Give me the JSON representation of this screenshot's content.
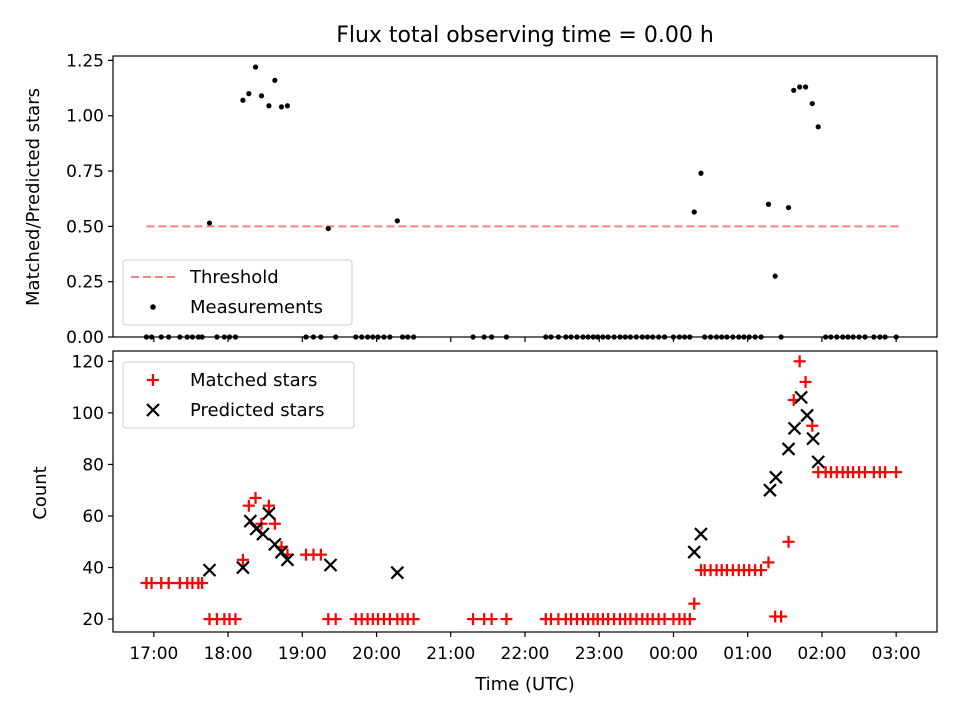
{
  "chart_data": [
    {
      "type": "scatter",
      "title": "Flux total observing time = 0.00 h",
      "xlabel": "",
      "ylabel": "Matched/Predicted stars",
      "xlim": [
        16.45,
        27.55
      ],
      "ylim": [
        0,
        1.27
      ],
      "yticks": [
        0,
        0.25,
        0.5,
        0.75,
        1.0,
        1.25
      ],
      "ytick_labels": [
        "0.00",
        "0.25",
        "0.50",
        "0.75",
        "1.00",
        "1.25"
      ],
      "threshold": {
        "name": "Threshold",
        "value": 0.5,
        "x_start": 16.9,
        "x_end": 27.05,
        "color": "#ff7f7f"
      },
      "legend": {
        "placement": "lower-left",
        "entries": [
          "Threshold",
          "Measurements"
        ]
      },
      "series": [
        {
          "name": "Measurements",
          "color": "#000000",
          "points": [
            [
              16.9,
              0
            ],
            [
              16.97,
              0
            ],
            [
              17.1,
              0
            ],
            [
              17.2,
              0
            ],
            [
              17.35,
              0
            ],
            [
              17.45,
              0
            ],
            [
              17.52,
              0
            ],
            [
              17.6,
              0
            ],
            [
              17.65,
              0
            ],
            [
              17.75,
              0.515
            ],
            [
              17.85,
              0
            ],
            [
              17.95,
              0
            ],
            [
              18.02,
              0
            ],
            [
              18.1,
              0
            ],
            [
              18.2,
              1.07
            ],
            [
              18.28,
              1.1
            ],
            [
              18.37,
              1.22
            ],
            [
              18.45,
              1.09
            ],
            [
              18.55,
              1.045
            ],
            [
              18.63,
              1.16
            ],
            [
              18.72,
              1.04
            ],
            [
              18.8,
              1.045
            ],
            [
              19.05,
              0
            ],
            [
              19.15,
              0
            ],
            [
              19.25,
              0
            ],
            [
              19.35,
              0.49
            ],
            [
              19.45,
              0
            ],
            [
              19.72,
              0
            ],
            [
              19.8,
              0
            ],
            [
              19.88,
              0
            ],
            [
              19.95,
              0
            ],
            [
              20.02,
              0
            ],
            [
              20.1,
              0
            ],
            [
              20.18,
              0
            ],
            [
              20.28,
              0.525
            ],
            [
              20.35,
              0
            ],
            [
              20.42,
              0
            ],
            [
              20.5,
              0
            ],
            [
              21.3,
              0
            ],
            [
              21.45,
              0
            ],
            [
              21.55,
              0
            ],
            [
              21.75,
              0
            ],
            [
              22.28,
              0
            ],
            [
              22.35,
              0
            ],
            [
              22.45,
              0
            ],
            [
              22.55,
              0
            ],
            [
              22.62,
              0
            ],
            [
              22.7,
              0
            ],
            [
              22.78,
              0
            ],
            [
              22.85,
              0
            ],
            [
              22.92,
              0
            ],
            [
              22.98,
              0
            ],
            [
              23.05,
              0
            ],
            [
              23.12,
              0
            ],
            [
              23.2,
              0
            ],
            [
              23.28,
              0
            ],
            [
              23.35,
              0
            ],
            [
              23.42,
              0
            ],
            [
              23.5,
              0
            ],
            [
              23.58,
              0
            ],
            [
              23.65,
              0
            ],
            [
              23.72,
              0
            ],
            [
              23.8,
              0
            ],
            [
              23.88,
              0
            ],
            [
              24.0,
              0
            ],
            [
              24.08,
              0
            ],
            [
              24.15,
              0
            ],
            [
              24.22,
              0
            ],
            [
              24.28,
              0.565
            ],
            [
              24.37,
              0.74
            ],
            [
              24.42,
              0
            ],
            [
              24.5,
              0
            ],
            [
              24.58,
              0
            ],
            [
              24.65,
              0
            ],
            [
              24.72,
              0
            ],
            [
              24.8,
              0
            ],
            [
              24.88,
              0
            ],
            [
              24.95,
              0
            ],
            [
              25.02,
              0
            ],
            [
              25.1,
              0
            ],
            [
              25.18,
              0
            ],
            [
              25.28,
              0.6
            ],
            [
              25.37,
              0.275
            ],
            [
              25.45,
              0
            ],
            [
              25.55,
              0.585
            ],
            [
              25.62,
              1.115
            ],
            [
              25.7,
              1.13
            ],
            [
              25.78,
              1.13
            ],
            [
              25.87,
              1.055
            ],
            [
              25.95,
              0.95
            ],
            [
              26.05,
              0
            ],
            [
              26.12,
              0
            ],
            [
              26.2,
              0
            ],
            [
              26.28,
              0
            ],
            [
              26.35,
              0
            ],
            [
              26.42,
              0
            ],
            [
              26.5,
              0
            ],
            [
              26.58,
              0
            ],
            [
              26.7,
              0
            ],
            [
              26.78,
              0
            ],
            [
              26.85,
              0
            ],
            [
              27.0,
              0
            ]
          ]
        }
      ]
    },
    {
      "type": "scatter",
      "title": "",
      "xlabel": "Time (UTC)",
      "ylabel": "Count",
      "xlim": [
        16.45,
        27.55
      ],
      "ylim": [
        15,
        124
      ],
      "xticks": [
        17,
        18,
        19,
        20,
        21,
        22,
        23,
        24,
        25,
        26,
        27
      ],
      "xtick_labels": [
        "17:00",
        "18:00",
        "19:00",
        "20:00",
        "21:00",
        "22:00",
        "23:00",
        "00:00",
        "01:00",
        "02:00",
        "03:00"
      ],
      "yticks": [
        20,
        40,
        60,
        80,
        100,
        120
      ],
      "ytick_labels": [
        "20",
        "40",
        "60",
        "80",
        "100",
        "120"
      ],
      "legend": {
        "placement": "upper-left",
        "entries": [
          "Matched stars",
          "Predicted stars"
        ]
      },
      "series": [
        {
          "name": "Matched stars",
          "marker": "plus",
          "color": "#ff0000",
          "points": [
            [
              16.9,
              34
            ],
            [
              16.97,
              34
            ],
            [
              17.1,
              34
            ],
            [
              17.2,
              34
            ],
            [
              17.35,
              34
            ],
            [
              17.45,
              34
            ],
            [
              17.52,
              34
            ],
            [
              17.6,
              34
            ],
            [
              17.65,
              34
            ],
            [
              17.75,
              20
            ],
            [
              17.85,
              20
            ],
            [
              17.95,
              20
            ],
            [
              18.02,
              20
            ],
            [
              18.1,
              20
            ],
            [
              18.2,
              43
            ],
            [
              18.28,
              64
            ],
            [
              18.37,
              67
            ],
            [
              18.45,
              57
            ],
            [
              18.55,
              64
            ],
            [
              18.63,
              57
            ],
            [
              18.72,
              48
            ],
            [
              18.8,
              45
            ],
            [
              19.05,
              45
            ],
            [
              19.15,
              45
            ],
            [
              19.25,
              45
            ],
            [
              19.35,
              20
            ],
            [
              19.45,
              20
            ],
            [
              19.72,
              20
            ],
            [
              19.8,
              20
            ],
            [
              19.88,
              20
            ],
            [
              19.95,
              20
            ],
            [
              20.02,
              20
            ],
            [
              20.1,
              20
            ],
            [
              20.18,
              20
            ],
            [
              20.28,
              20
            ],
            [
              20.35,
              20
            ],
            [
              20.42,
              20
            ],
            [
              20.5,
              20
            ],
            [
              21.3,
              20
            ],
            [
              21.45,
              20
            ],
            [
              21.55,
              20
            ],
            [
              21.75,
              20
            ],
            [
              22.28,
              20
            ],
            [
              22.35,
              20
            ],
            [
              22.45,
              20
            ],
            [
              22.55,
              20
            ],
            [
              22.62,
              20
            ],
            [
              22.7,
              20
            ],
            [
              22.78,
              20
            ],
            [
              22.85,
              20
            ],
            [
              22.92,
              20
            ],
            [
              22.98,
              20
            ],
            [
              23.05,
              20
            ],
            [
              23.12,
              20
            ],
            [
              23.2,
              20
            ],
            [
              23.28,
              20
            ],
            [
              23.35,
              20
            ],
            [
              23.42,
              20
            ],
            [
              23.5,
              20
            ],
            [
              23.58,
              20
            ],
            [
              23.65,
              20
            ],
            [
              23.72,
              20
            ],
            [
              23.8,
              20
            ],
            [
              23.88,
              20
            ],
            [
              24.0,
              20
            ],
            [
              24.08,
              20
            ],
            [
              24.15,
              20
            ],
            [
              24.22,
              20
            ],
            [
              24.28,
              26
            ],
            [
              24.37,
              39
            ],
            [
              24.42,
              39
            ],
            [
              24.5,
              39
            ],
            [
              24.58,
              39
            ],
            [
              24.65,
              39
            ],
            [
              24.72,
              39
            ],
            [
              24.8,
              39
            ],
            [
              24.88,
              39
            ],
            [
              24.95,
              39
            ],
            [
              25.02,
              39
            ],
            [
              25.1,
              39
            ],
            [
              25.18,
              39
            ],
            [
              25.28,
              42
            ],
            [
              25.37,
              21
            ],
            [
              25.45,
              21
            ],
            [
              25.55,
              50
            ],
            [
              25.62,
              105
            ],
            [
              25.7,
              120
            ],
            [
              25.78,
              112
            ],
            [
              25.87,
              95
            ],
            [
              25.95,
              77
            ],
            [
              26.05,
              77
            ],
            [
              26.12,
              77
            ],
            [
              26.2,
              77
            ],
            [
              26.28,
              77
            ],
            [
              26.35,
              77
            ],
            [
              26.42,
              77
            ],
            [
              26.5,
              77
            ],
            [
              26.58,
              77
            ],
            [
              26.7,
              77
            ],
            [
              26.78,
              77
            ],
            [
              26.85,
              77
            ],
            [
              27.0,
              77
            ]
          ]
        },
        {
          "name": "Predicted stars",
          "marker": "x",
          "color": "#000000",
          "points": [
            [
              17.75,
              39
            ],
            [
              18.2,
              40
            ],
            [
              18.3,
              58
            ],
            [
              18.38,
              55
            ],
            [
              18.47,
              53
            ],
            [
              18.55,
              61
            ],
            [
              18.63,
              49
            ],
            [
              18.72,
              46
            ],
            [
              18.8,
              43
            ],
            [
              19.38,
              41
            ],
            [
              20.28,
              38
            ],
            [
              24.28,
              46
            ],
            [
              24.37,
              53
            ],
            [
              25.3,
              70
            ],
            [
              25.38,
              75
            ],
            [
              25.55,
              86
            ],
            [
              25.63,
              94
            ],
            [
              25.72,
              106
            ],
            [
              25.8,
              99
            ],
            [
              25.88,
              90
            ],
            [
              25.95,
              81
            ]
          ]
        }
      ]
    }
  ]
}
